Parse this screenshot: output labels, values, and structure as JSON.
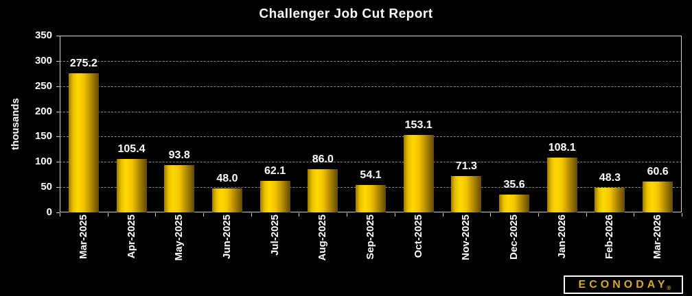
{
  "title": "Challenger Job Cut Report",
  "colors": {
    "background": "#000000",
    "text": "#ffffff",
    "gridline": "#8f8f8f",
    "frame": "#cfcfcf",
    "logo_gold": "#d9a821",
    "bar_gradient": [
      "#9c7a00 0%",
      "#e8c200 15%",
      "#ffd900 30%",
      "#f2c500 50%",
      "#b08800 75%",
      "#604800 100%"
    ]
  },
  "chart_data": {
    "type": "bar",
    "title": "Challenger Job Cut Report",
    "xlabel": "",
    "ylabel": "thousands",
    "categories": [
      "Mar-2025",
      "Apr-2025",
      "May-2025",
      "Jun-2025",
      "Jul-2025",
      "Aug-2025",
      "Sep-2025",
      "Oct-2025",
      "Nov-2025",
      "Dec-2025",
      "Jan-2026",
      "Feb-2026",
      "Mar-2026"
    ],
    "values": [
      275.2,
      105.4,
      93.8,
      48.0,
      62.1,
      86.0,
      54.1,
      153.1,
      71.3,
      35.6,
      108.1,
      48.3,
      60.6
    ],
    "data_labels": [
      "275.2",
      "105.4",
      "93.8",
      "48.0",
      "62.1",
      "86.0",
      "54.1",
      "153.1",
      "71.3",
      "35.6",
      "108.1",
      "48.3",
      "60.6"
    ],
    "ylim": [
      0,
      350
    ],
    "ytick_step": 50,
    "ytick_labels": [
      "0",
      "50",
      "100",
      "150",
      "200",
      "250",
      "300",
      "350"
    ],
    "grid": "horizontal-dashed",
    "legend": "none"
  },
  "logo": {
    "text": "ECONODAY",
    "registered": "®"
  }
}
